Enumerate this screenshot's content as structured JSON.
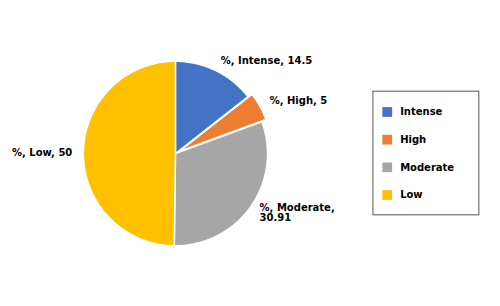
{
  "chart_data": {
    "type": "pie",
    "categories": [
      "Intense",
      "High",
      "Moderate",
      "Low"
    ],
    "values": [
      14.5,
      5,
      30.91,
      50
    ],
    "colors": [
      "#4472C4",
      "#ED7D31",
      "#A6A6A6",
      "#FFC000"
    ],
    "data_labels": true,
    "value_labels": [
      "%, Intense, 14.5",
      "%, High, 5",
      "%, Moderate,\n30.91",
      "%, Low, 50"
    ],
    "legend": "right"
  }
}
